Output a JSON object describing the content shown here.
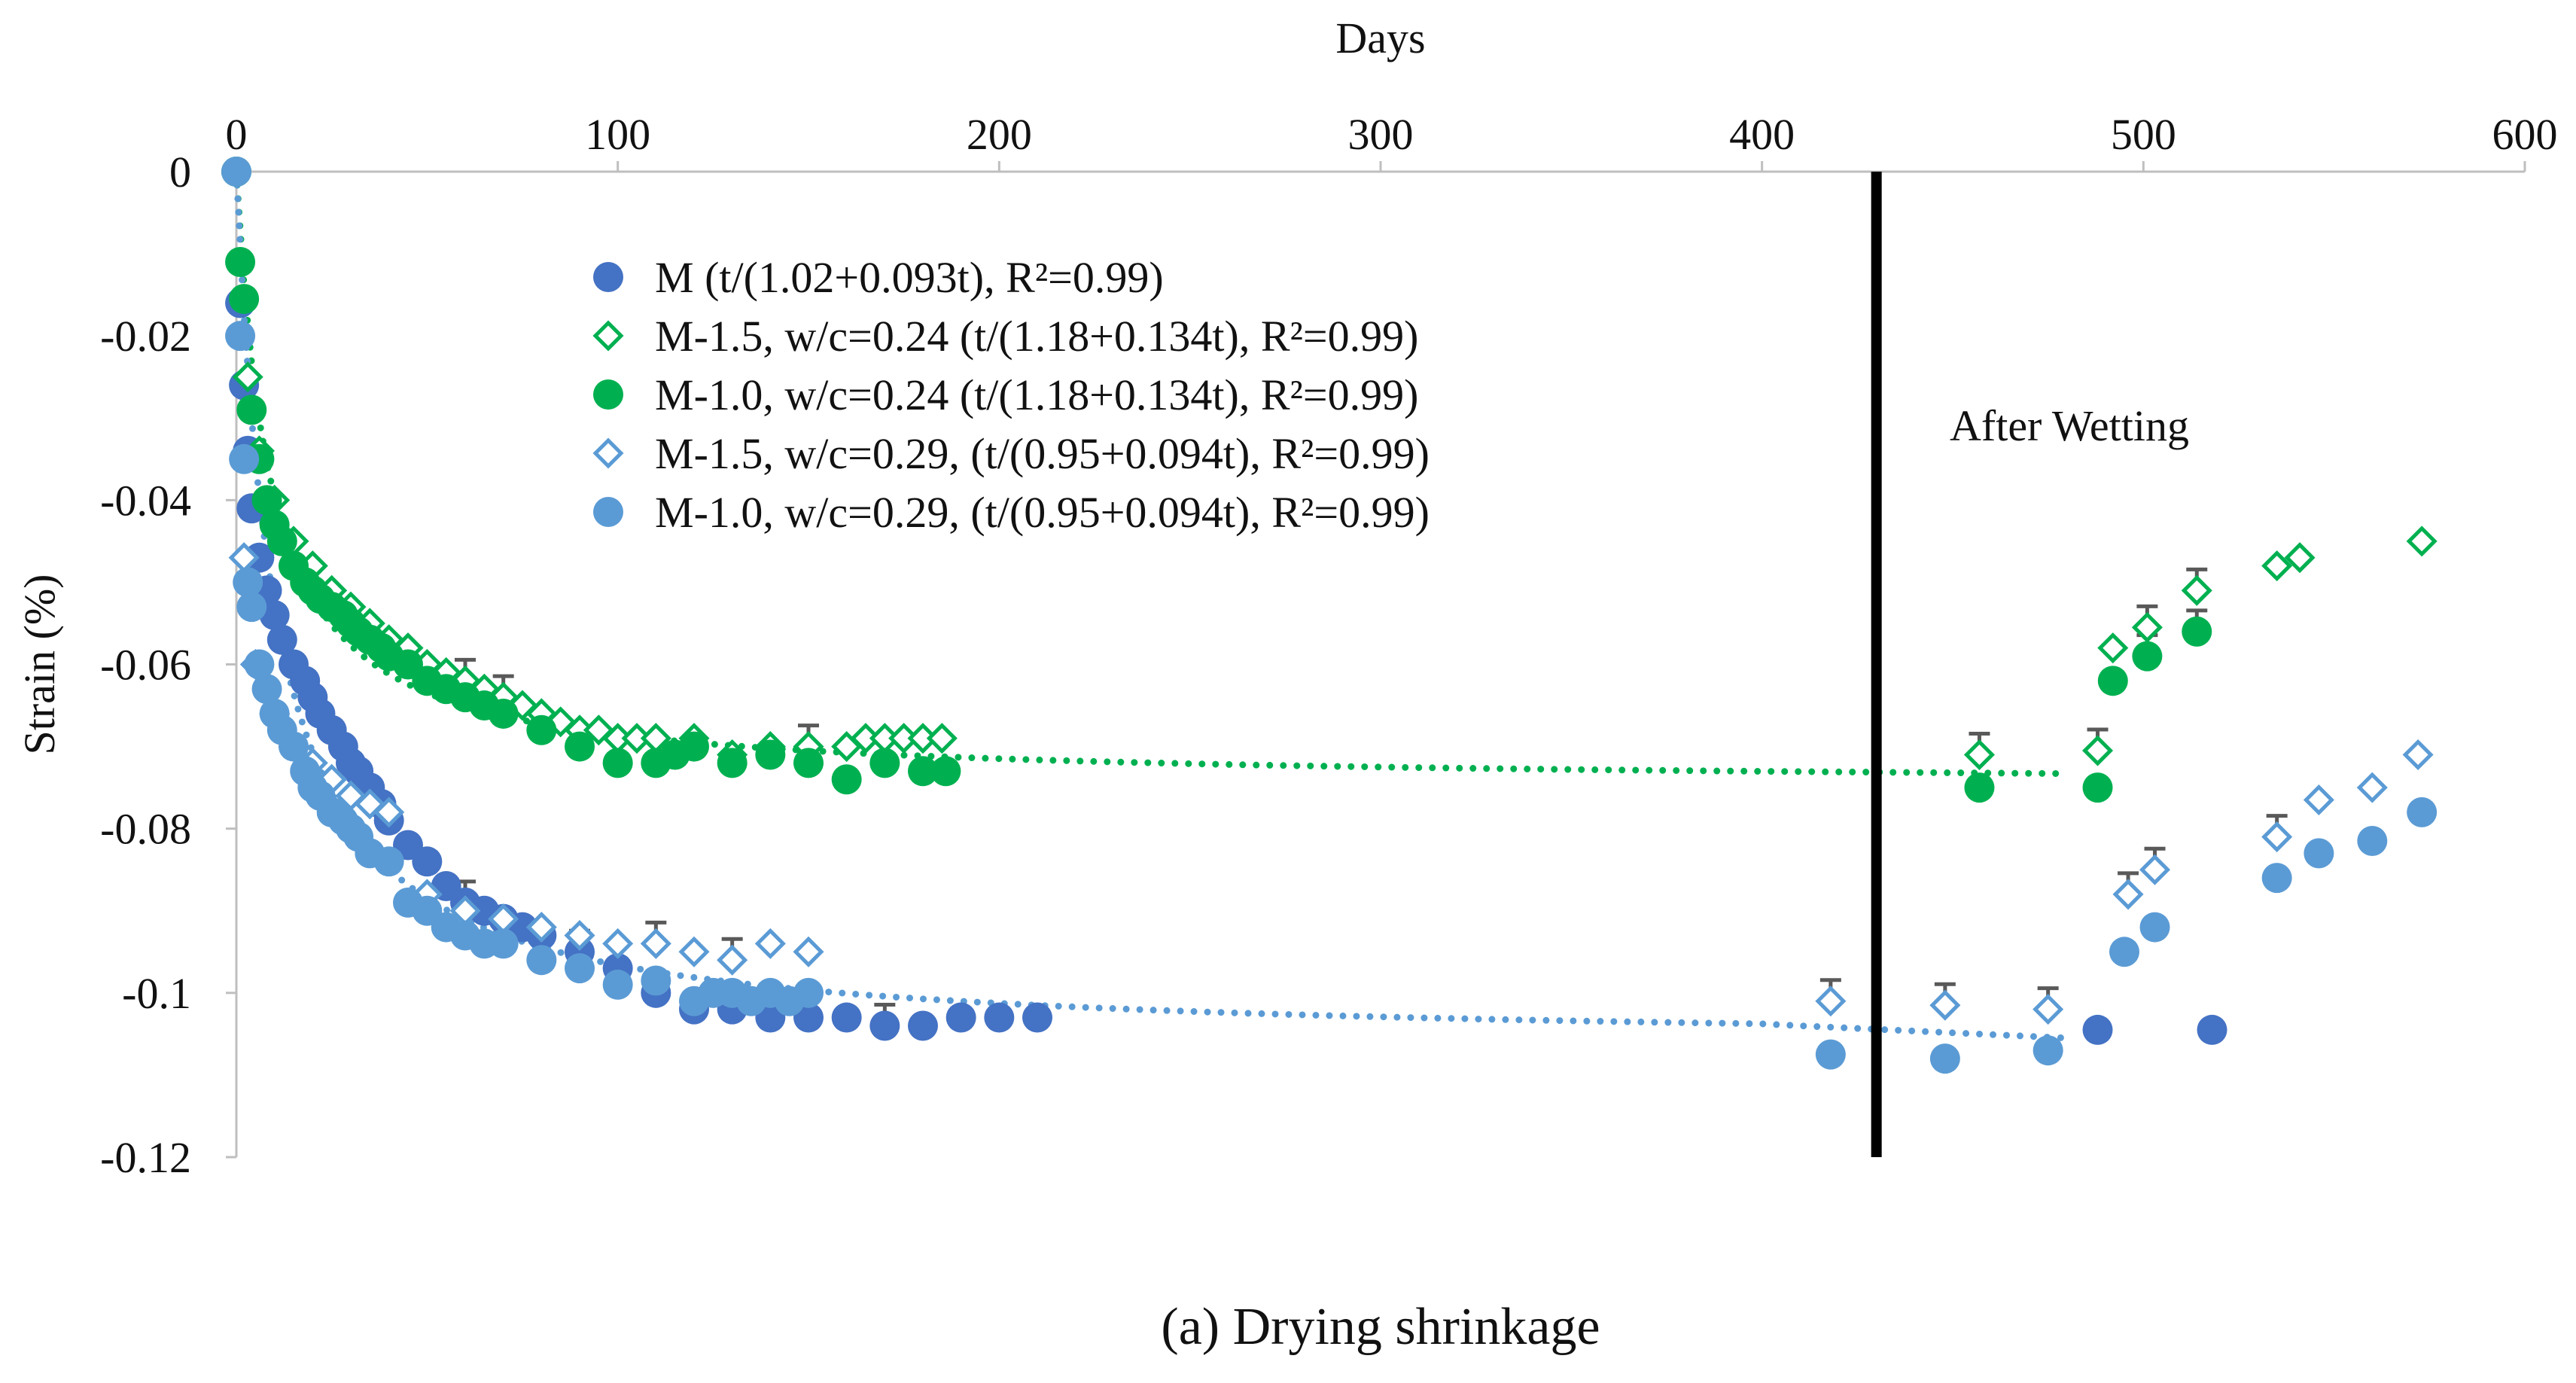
{
  "chart_data": {
    "type": "scatter",
    "title": "",
    "caption": "(a) Drying shrinkage",
    "xlabel": "Days",
    "ylabel": "Strain (%)",
    "xlim": [
      0,
      600
    ],
    "ylim": [
      -0.12,
      0
    ],
    "xticks": [
      0,
      100,
      200,
      300,
      400,
      500,
      600
    ],
    "yticks": [
      0,
      -0.02,
      -0.04,
      -0.06,
      -0.08,
      -0.1,
      -0.12
    ],
    "xtick_labels": [
      "0",
      "100",
      "200",
      "300",
      "400",
      "500",
      "600"
    ],
    "ytick_labels": [
      "0",
      "-0.02",
      "-0.04",
      "-0.06",
      "-0.08",
      "-0.1",
      "-0.12"
    ],
    "x_axis_position": "top",
    "grid": false,
    "legend_position": "upper-center",
    "annotation": {
      "text": "After Wetting",
      "x": 430,
      "y": -0.031
    },
    "wetting_line_day": 430,
    "colors": {
      "M": "#4472c4",
      "green": "#00b050",
      "light_blue": "#5b9bd5",
      "errorbar": "#595959",
      "vline": "#000000"
    },
    "series": [
      {
        "name": "M (t/(1.02+0.093t), R²=0.99)",
        "marker": "circle",
        "filled": true,
        "color": "#4472c4",
        "x": [
          0,
          1,
          2,
          3,
          4,
          6,
          8,
          10,
          12,
          15,
          18,
          20,
          22,
          25,
          28,
          30,
          32,
          35,
          38,
          40,
          45,
          50,
          55,
          60,
          65,
          70,
          75,
          80,
          90,
          100,
          110,
          120,
          130,
          140,
          150,
          160,
          170,
          180,
          190,
          200,
          210,
          488,
          518
        ],
        "y": [
          0,
          -0.016,
          -0.026,
          -0.034,
          -0.041,
          -0.047,
          -0.051,
          -0.054,
          -0.057,
          -0.06,
          -0.062,
          -0.064,
          -0.066,
          -0.068,
          -0.07,
          -0.072,
          -0.073,
          -0.075,
          -0.077,
          -0.079,
          -0.082,
          -0.084,
          -0.087,
          -0.089,
          -0.09,
          -0.091,
          -0.092,
          -0.093,
          -0.095,
          -0.097,
          -0.1,
          -0.102,
          -0.102,
          -0.103,
          -0.103,
          -0.103,
          -0.104,
          -0.104,
          -0.103,
          -0.103,
          -0.103,
          -0.1045,
          -0.1045
        ],
        "error_x": [
          60,
          90,
          110,
          125,
          140,
          170
        ]
      },
      {
        "name": "M-1.5, w/c=0.24 (t/(1.18+0.134t), R²=0.99)",
        "marker": "diamond",
        "filled": false,
        "color": "#00b050",
        "x": [
          3,
          6,
          10,
          15,
          20,
          25,
          30,
          35,
          40,
          45,
          50,
          55,
          60,
          65,
          70,
          75,
          80,
          85,
          90,
          95,
          100,
          105,
          110,
          120,
          130,
          140,
          150,
          160,
          165,
          170,
          175,
          180,
          185,
          457,
          488,
          492,
          501,
          514,
          535,
          541,
          573
        ],
        "y": [
          -0.025,
          -0.034,
          -0.04,
          -0.045,
          -0.048,
          -0.051,
          -0.053,
          -0.055,
          -0.057,
          -0.058,
          -0.06,
          -0.061,
          -0.062,
          -0.063,
          -0.064,
          -0.065,
          -0.066,
          -0.067,
          -0.068,
          -0.068,
          -0.069,
          -0.069,
          -0.069,
          -0.069,
          -0.071,
          -0.07,
          -0.07,
          -0.07,
          -0.069,
          -0.069,
          -0.069,
          -0.069,
          -0.069,
          -0.071,
          -0.0705,
          -0.058,
          -0.0555,
          -0.051,
          -0.048,
          -0.047,
          -0.045
        ],
        "error_x": [
          60,
          70,
          150,
          457,
          488,
          501,
          514
        ]
      },
      {
        "name": "M-1.0, w/c=0.24 (t/(1.18+0.134t), R²=0.99)",
        "marker": "circle",
        "filled": true,
        "color": "#00b050",
        "x": [
          0,
          1,
          2,
          4,
          6,
          8,
          10,
          12,
          15,
          18,
          20,
          22,
          25,
          28,
          30,
          32,
          35,
          38,
          40,
          45,
          50,
          55,
          60,
          65,
          70,
          80,
          90,
          100,
          110,
          115,
          120,
          130,
          140,
          150,
          160,
          170,
          180,
          186,
          457,
          488,
          492,
          501,
          514
        ],
        "y": [
          0,
          -0.011,
          -0.0155,
          -0.029,
          -0.035,
          -0.04,
          -0.043,
          -0.045,
          -0.048,
          -0.05,
          -0.051,
          -0.052,
          -0.053,
          -0.054,
          -0.055,
          -0.056,
          -0.057,
          -0.058,
          -0.059,
          -0.06,
          -0.062,
          -0.063,
          -0.064,
          -0.065,
          -0.066,
          -0.068,
          -0.07,
          -0.072,
          -0.072,
          -0.071,
          -0.07,
          -0.072,
          -0.071,
          -0.072,
          -0.074,
          -0.072,
          -0.073,
          -0.073,
          -0.075,
          -0.075,
          -0.062,
          -0.059,
          -0.056
        ],
        "error_x": [
          501,
          514
        ]
      },
      {
        "name": "M-1.5, w/c=0.29, (t/(0.95+0.094t), R²=0.99)",
        "marker": "diamond",
        "filled": false,
        "color": "#5b9bd5",
        "x": [
          2,
          5,
          10,
          15,
          20,
          25,
          30,
          35,
          40,
          50,
          60,
          70,
          80,
          90,
          100,
          110,
          120,
          130,
          140,
          150,
          418,
          448,
          475,
          496,
          503,
          535,
          546,
          560,
          572
        ],
        "y": [
          -0.047,
          -0.06,
          -0.066,
          -0.07,
          -0.072,
          -0.074,
          -0.076,
          -0.077,
          -0.078,
          -0.088,
          -0.09,
          -0.091,
          -0.092,
          -0.093,
          -0.094,
          -0.094,
          -0.095,
          -0.096,
          -0.094,
          -0.095,
          -0.101,
          -0.1015,
          -0.102,
          -0.088,
          -0.085,
          -0.081,
          -0.0765,
          -0.075,
          -0.071
        ],
        "error_x": [
          35,
          55,
          85,
          110,
          130,
          145,
          418,
          448,
          475,
          496,
          503,
          535
        ]
      },
      {
        "name": "M-1.0, w/c=0.29, (t/(0.95+0.094t), R²=0.99)",
        "marker": "circle",
        "filled": true,
        "color": "#5b9bd5",
        "x": [
          0,
          1,
          2,
          3,
          4,
          6,
          8,
          10,
          12,
          15,
          18,
          20,
          22,
          25,
          28,
          30,
          32,
          35,
          40,
          45,
          50,
          55,
          60,
          65,
          70,
          80,
          90,
          100,
          110,
          120,
          125,
          130,
          135,
          140,
          145,
          150,
          418,
          448,
          475,
          495,
          503,
          535,
          546,
          560,
          573
        ],
        "y": [
          0,
          -0.02,
          -0.035,
          -0.05,
          -0.053,
          -0.06,
          -0.063,
          -0.066,
          -0.068,
          -0.07,
          -0.073,
          -0.075,
          -0.076,
          -0.078,
          -0.079,
          -0.08,
          -0.081,
          -0.083,
          -0.084,
          -0.089,
          -0.09,
          -0.092,
          -0.093,
          -0.094,
          -0.094,
          -0.096,
          -0.097,
          -0.099,
          -0.0985,
          -0.101,
          -0.1,
          -0.1,
          -0.101,
          -0.1,
          -0.101,
          -0.1,
          -0.1075,
          -0.108,
          -0.107,
          -0.095,
          -0.092,
          -0.086,
          -0.083,
          -0.0815,
          -0.078
        ]
      }
    ],
    "fit_lines": [
      {
        "name": "green-fit",
        "color": "#00b050",
        "a": 1.18,
        "b": 0.134,
        "extra_points": [
          {
            "x": 480,
            "y": -0.0733
          }
        ]
      },
      {
        "name": "blue-fit",
        "color": "#5b9bd5",
        "a": 0.95,
        "b": 0.094,
        "extra_points": [
          {
            "x": 410,
            "y": -0.104
          },
          {
            "x": 480,
            "y": -0.1055
          }
        ]
      }
    ]
  }
}
